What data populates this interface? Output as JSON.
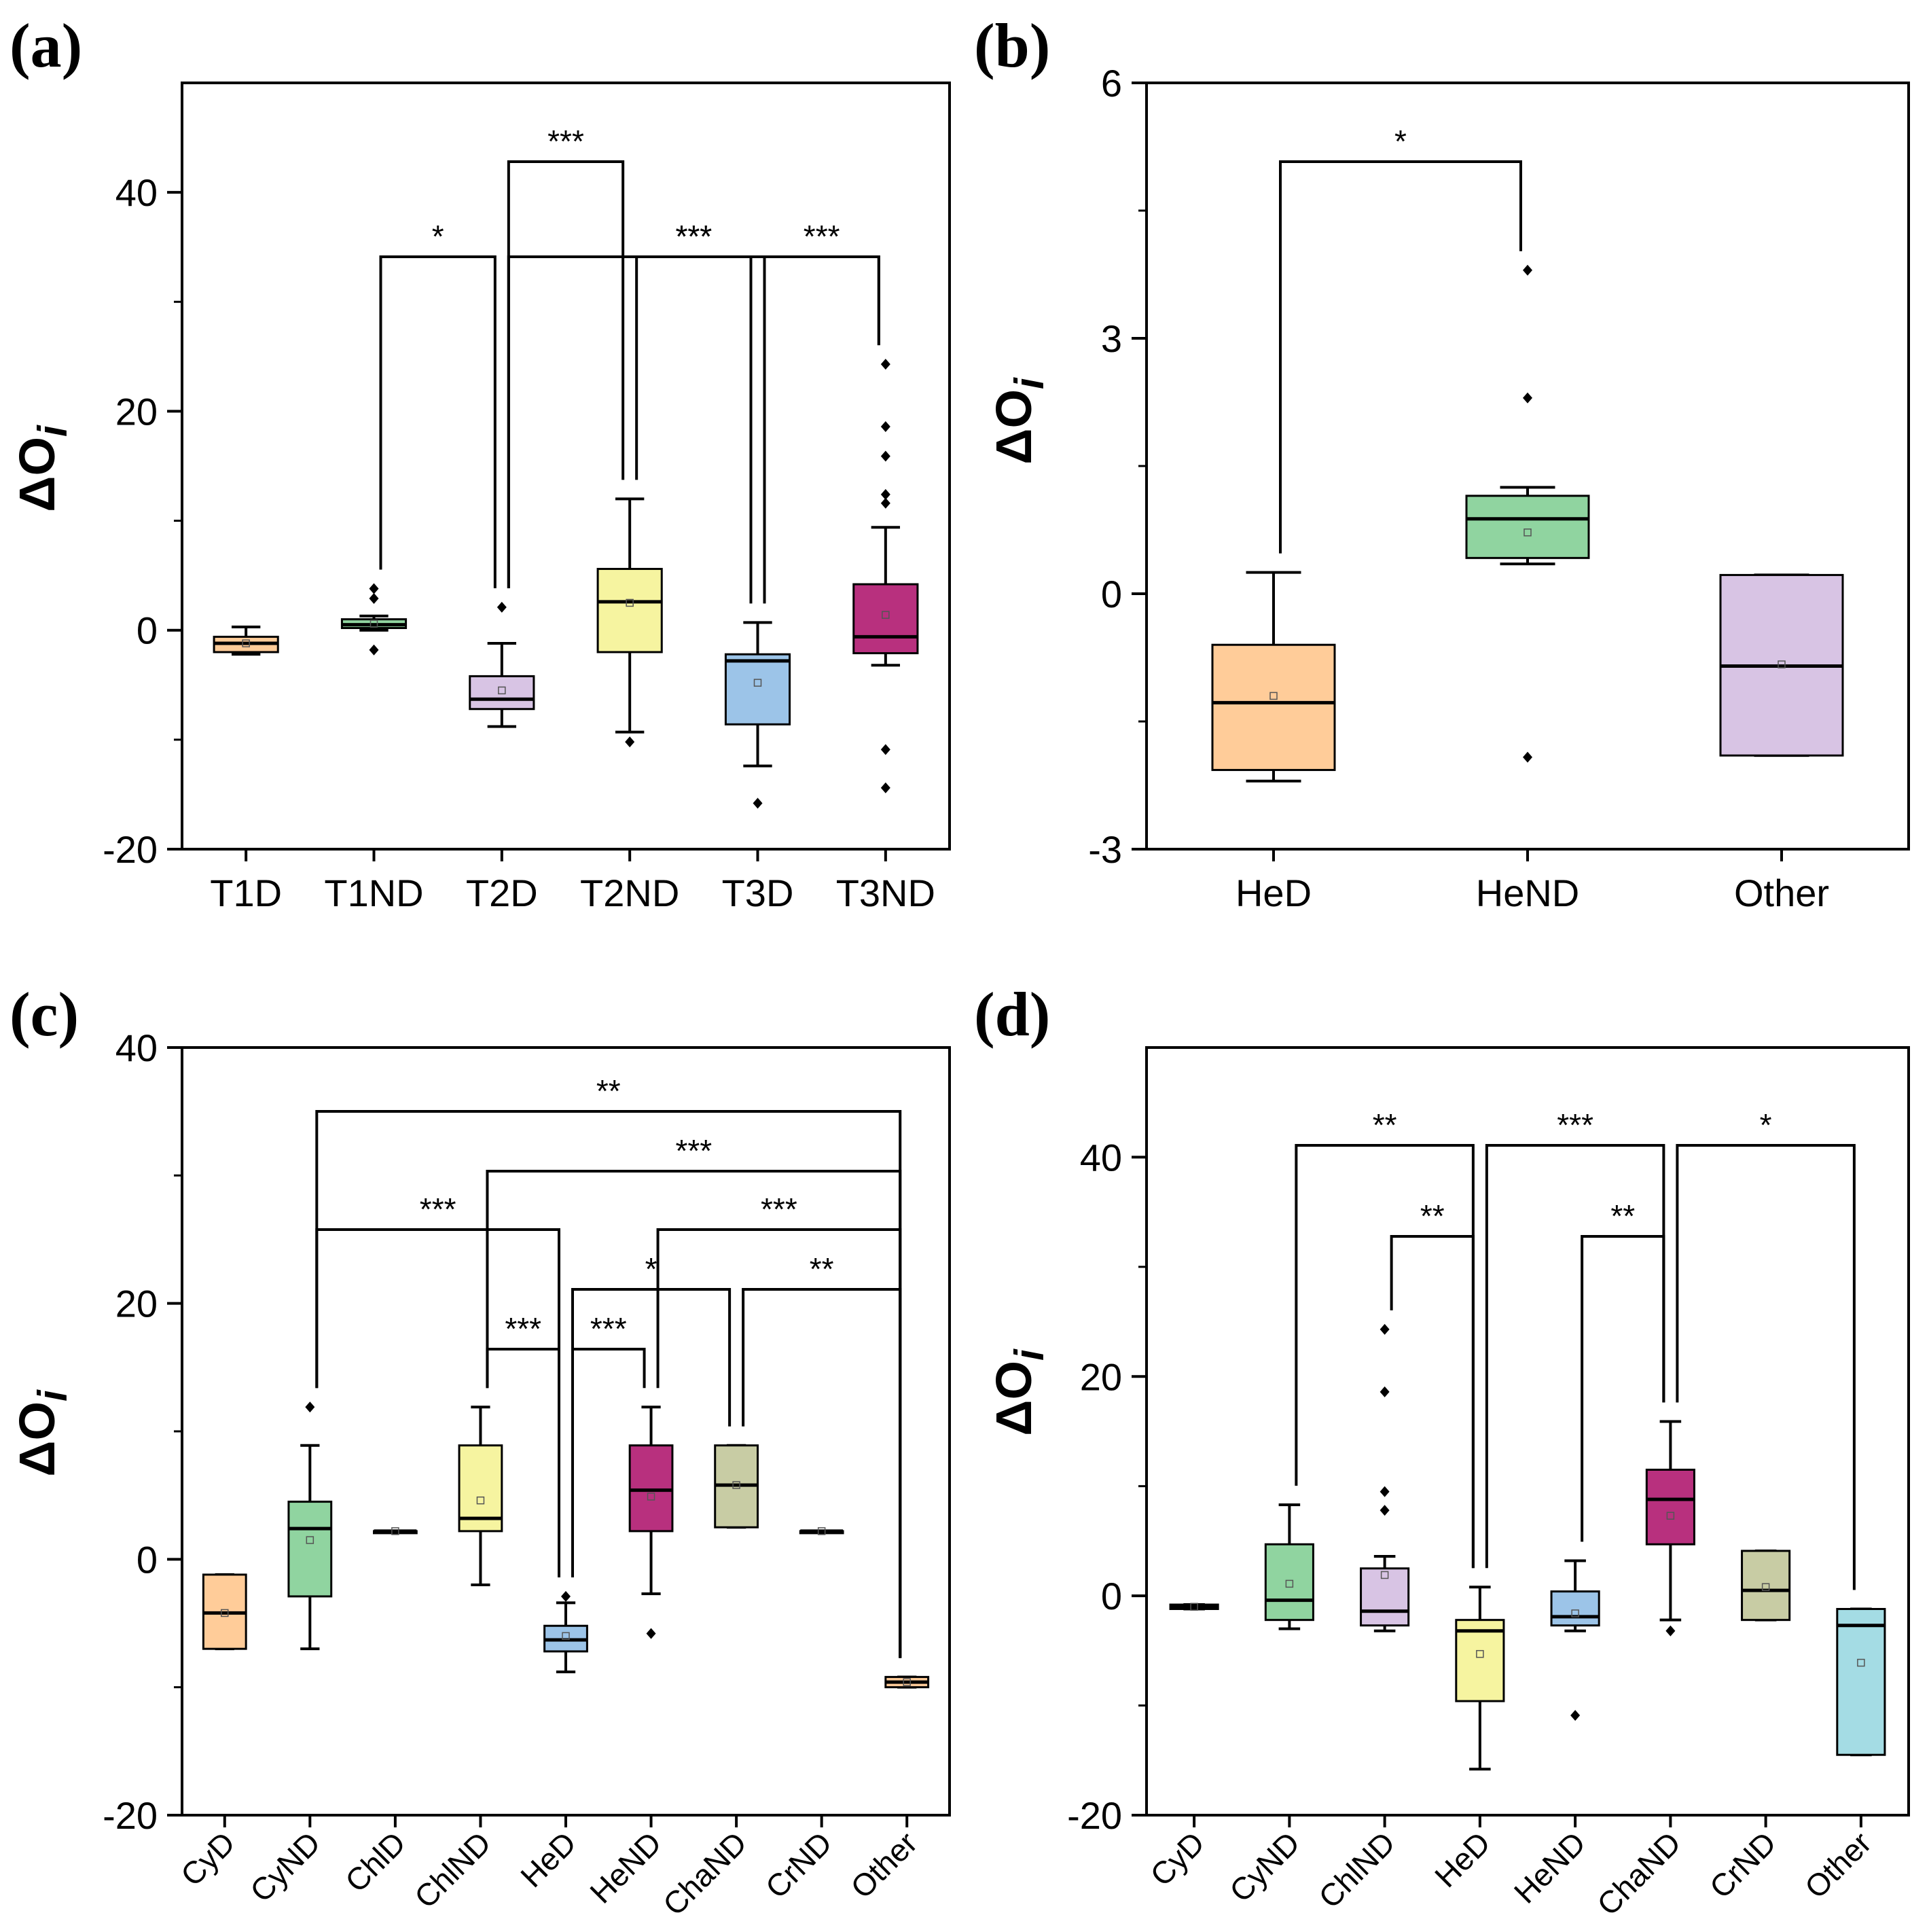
{
  "chart_data": [
    {
      "type": "box",
      "panel": "(a)",
      "ylabel": "ΔO",
      "ylabel_sub": "i",
      "ylim": [
        -20,
        50
      ],
      "yticks": [
        -20,
        0,
        20,
        40
      ],
      "categories": [
        "T1D",
        "T1ND",
        "T2D",
        "T2ND",
        "T3D",
        "T3ND"
      ],
      "boxes": [
        {
          "name": "T1D",
          "color": "#FFCC99",
          "whisker_low": -2.2,
          "q1": -2.0,
          "median": -1.2,
          "q3": -0.6,
          "whisker_high": 0.3,
          "mean": -1.2,
          "outliers": []
        },
        {
          "name": "T1ND",
          "color": "#90D4A0",
          "whisker_low": 0.0,
          "q1": 0.2,
          "median": 0.5,
          "q3": 1.0,
          "whisker_high": 1.3,
          "mean": 0.6,
          "outliers": [
            3.8,
            2.9,
            -1.8
          ]
        },
        {
          "name": "T2D",
          "color": "#D8C4E4",
          "whisker_low": -8.8,
          "q1": -7.2,
          "median": -6.3,
          "q3": -4.2,
          "whisker_high": -1.2,
          "mean": -5.5,
          "outliers": [
            2.1
          ]
        },
        {
          "name": "T2ND",
          "color": "#F6F4A0",
          "whisker_low": -9.3,
          "q1": -2.0,
          "median": 2.6,
          "q3": 5.6,
          "whisker_high": 12.0,
          "mean": 2.5,
          "outliers": [
            -10.2
          ]
        },
        {
          "name": "T3D",
          "color": "#9CC4E8",
          "whisker_low": -12.4,
          "q1": -8.6,
          "median": -2.8,
          "q3": -2.2,
          "whisker_high": 0.7,
          "mean": -4.8,
          "outliers": [
            -15.8
          ]
        },
        {
          "name": "T3ND",
          "color": "#B8307E",
          "whisker_low": -3.2,
          "q1": -2.1,
          "median": -0.6,
          "q3": 4.2,
          "whisker_high": 9.4,
          "mean": 1.4,
          "outliers": [
            24.3,
            18.6,
            15.9,
            12.4,
            11.6,
            -10.9,
            -14.4
          ]
        }
      ],
      "significance": [
        {
          "from": "T1ND",
          "to": "T2D",
          "label": "*"
        },
        {
          "from": "T2D",
          "to": "T2ND",
          "label": "***"
        },
        {
          "from": "T2ND",
          "to": "T3D",
          "label": "***"
        },
        {
          "from": "T3D",
          "to": "T3ND",
          "label": "***"
        },
        {
          "from": "T2D",
          "to": "T3ND",
          "label": "***"
        }
      ]
    },
    {
      "type": "box",
      "panel": "(b)",
      "ylabel": "ΔO",
      "ylabel_sub": "i",
      "ylim": [
        -3,
        6
      ],
      "yticks": [
        -3,
        0,
        3,
        6
      ],
      "categories": [
        "HeD",
        "HeND",
        "Other"
      ],
      "boxes": [
        {
          "name": "HeD",
          "color": "#FFCC99",
          "whisker_low": -2.2,
          "q1": -2.07,
          "median": -1.28,
          "q3": -0.6,
          "whisker_high": 0.25,
          "mean": -1.2,
          "outliers": []
        },
        {
          "name": "HeND",
          "color": "#90D4A0",
          "whisker_low": 0.35,
          "q1": 0.42,
          "median": 0.88,
          "q3": 1.15,
          "whisker_high": 1.25,
          "mean": 0.72,
          "outliers": [
            3.8,
            2.3,
            -1.92
          ]
        },
        {
          "name": "Other",
          "color": "#D8C4E4",
          "whisker_low": -1.9,
          "q1": -1.9,
          "median": -0.85,
          "q3": 0.22,
          "whisker_high": 0.22,
          "mean": -0.83,
          "outliers": []
        }
      ],
      "significance": [
        {
          "from": "HeD",
          "to": "HeND",
          "label": "*"
        }
      ]
    },
    {
      "type": "box",
      "panel": "(c)",
      "ylabel": "ΔO",
      "ylabel_sub": "i",
      "ylim": [
        -20,
        40
      ],
      "yticks": [
        -20,
        0,
        20,
        40
      ],
      "categories": [
        "CyD",
        "CyND",
        "ChlD",
        "ChlND",
        "HeD",
        "HeND",
        "ChaND",
        "CrND",
        "Other"
      ],
      "boxes": [
        {
          "name": "CyD",
          "color": "#FFCC99",
          "whisker_low": -7.0,
          "q1": -7.0,
          "median": -4.2,
          "q3": -1.2,
          "whisker_high": -1.2,
          "mean": -4.2,
          "outliers": []
        },
        {
          "name": "CyND",
          "color": "#90D4A0",
          "whisker_low": -7.0,
          "q1": -2.9,
          "median": 2.4,
          "q3": 4.5,
          "whisker_high": 8.9,
          "mean": 1.5,
          "outliers": [
            11.9
          ]
        },
        {
          "name": "ChlD",
          "color": "#D8C4E4",
          "whisker_low": 2.2,
          "q1": 2.2,
          "median": 2.2,
          "q3": 2.2,
          "whisker_high": 2.2,
          "mean": 2.2,
          "outliers": []
        },
        {
          "name": "ChlND",
          "color": "#F6F4A0",
          "whisker_low": -2.0,
          "q1": 2.2,
          "median": 3.2,
          "q3": 8.9,
          "whisker_high": 11.9,
          "mean": 4.6,
          "outliers": []
        },
        {
          "name": "HeD",
          "color": "#9CC4E8",
          "whisker_low": -8.8,
          "q1": -7.2,
          "median": -6.3,
          "q3": -5.2,
          "whisker_high": -3.4,
          "mean": -6.0,
          "outliers": [
            -2.9
          ]
        },
        {
          "name": "HeND",
          "color": "#B8307E",
          "whisker_low": -2.7,
          "q1": 2.2,
          "median": 5.4,
          "q3": 8.9,
          "whisker_high": 11.9,
          "mean": 4.9,
          "outliers": [
            -5.8
          ]
        },
        {
          "name": "ChaND",
          "color": "#C8CCA4",
          "whisker_low": 2.5,
          "q1": 2.5,
          "median": 5.8,
          "q3": 8.9,
          "whisker_high": 8.9,
          "mean": 5.8,
          "outliers": []
        },
        {
          "name": "CrND",
          "color": "#D8C4E4",
          "whisker_low": 2.2,
          "q1": 2.2,
          "median": 2.2,
          "q3": 2.2,
          "whisker_high": 2.2,
          "mean": 2.2,
          "outliers": []
        },
        {
          "name": "Other",
          "color": "#FFCC99",
          "whisker_low": -10.0,
          "q1": -10.0,
          "median": -9.6,
          "q3": -9.2,
          "whisker_high": -9.2,
          "mean": -9.6,
          "outliers": []
        }
      ],
      "significance": [
        {
          "from": "CyND",
          "to": "Other",
          "label": "**"
        },
        {
          "from": "ChlND",
          "to": "Other",
          "label": "***"
        },
        {
          "from": "CyND",
          "to": "HeD",
          "label": "***"
        },
        {
          "from": "HeND",
          "to": "Other",
          "label": "***"
        },
        {
          "from": "HeD",
          "to": "ChaND",
          "label": "*"
        },
        {
          "from": "ChaND",
          "to": "Other",
          "label": "**"
        },
        {
          "from": "ChlND",
          "to": "HeD",
          "label": "***"
        },
        {
          "from": "HeD",
          "to": "HeND",
          "label": "***"
        }
      ]
    },
    {
      "type": "box",
      "panel": "(d)",
      "ylabel": "ΔO",
      "ylabel_sub": "i",
      "ylim": [
        -20,
        50
      ],
      "yticks": [
        -20,
        0,
        20,
        40
      ],
      "categories": [
        "CyD",
        "CyND",
        "ChlND",
        "HeD",
        "HeND",
        "ChaND",
        "CrND",
        "Other"
      ],
      "boxes": [
        {
          "name": "CyD",
          "color": "#FFCC99",
          "whisker_low": -1.2,
          "q1": -1.2,
          "median": -1.0,
          "q3": -0.8,
          "whisker_high": -0.8,
          "mean": -1.0,
          "outliers": []
        },
        {
          "name": "CyND",
          "color": "#90D4A0",
          "whisker_low": -3.0,
          "q1": -2.2,
          "median": -0.4,
          "q3": 4.7,
          "whisker_high": 8.3,
          "mean": 1.1,
          "outliers": []
        },
        {
          "name": "ChlND",
          "color": "#D8C4E4",
          "whisker_low": -3.2,
          "q1": -2.7,
          "median": -1.4,
          "q3": 2.5,
          "whisker_high": 3.6,
          "mean": 1.9,
          "outliers": [
            24.3,
            18.6,
            9.5,
            7.8
          ]
        },
        {
          "name": "HeD",
          "color": "#F6F4A0",
          "whisker_low": -15.8,
          "q1": -9.6,
          "median": -3.2,
          "q3": -2.2,
          "whisker_high": 0.8,
          "mean": -5.3,
          "outliers": []
        },
        {
          "name": "HeND",
          "color": "#9CC4E8",
          "whisker_low": -3.2,
          "q1": -2.7,
          "median": -1.9,
          "q3": 0.4,
          "whisker_high": 3.2,
          "mean": -1.6,
          "outliers": [
            -10.9
          ]
        },
        {
          "name": "ChaND",
          "color": "#B8307E",
          "whisker_low": -2.2,
          "q1": 4.7,
          "median": 8.8,
          "q3": 11.5,
          "whisker_high": 15.9,
          "mean": 7.3,
          "outliers": [
            -3.2
          ]
        },
        {
          "name": "CrND",
          "color": "#C8CCA4",
          "whisker_low": -2.2,
          "q1": -2.2,
          "median": 0.5,
          "q3": 4.1,
          "whisker_high": 4.1,
          "mean": 0.8,
          "outliers": []
        },
        {
          "name": "Other",
          "color": "#A4DCE4",
          "whisker_low": -14.5,
          "q1": -14.5,
          "median": -2.7,
          "q3": -1.2,
          "whisker_high": -1.2,
          "mean": -6.1,
          "outliers": []
        }
      ],
      "significance": [
        {
          "from": "CyND",
          "to": "HeD",
          "label": "**"
        },
        {
          "from": "HeD",
          "to": "ChaND",
          "label": "***"
        },
        {
          "from": "ChaND",
          "to": "Other",
          "label": "*"
        },
        {
          "from": "ChlND",
          "to": "HeD",
          "label": "**"
        },
        {
          "from": "HeND",
          "to": "ChaND",
          "label": "**"
        }
      ]
    }
  ]
}
